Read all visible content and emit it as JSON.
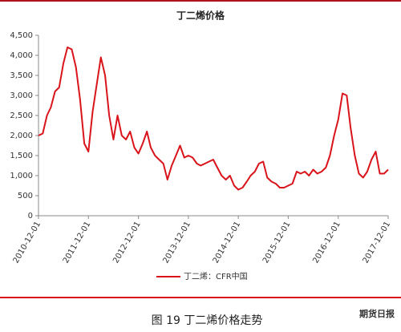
{
  "chart_data": {
    "type": "line",
    "title": "丁二烯价格",
    "caption": "图 19 丁二烯价格走势",
    "watermark": "期货日报",
    "x": [
      "2010-12-01",
      "2011-01-01",
      "2011-02-01",
      "2011-03-01",
      "2011-04-01",
      "2011-05-01",
      "2011-06-01",
      "2011-07-01",
      "2011-08-01",
      "2011-09-01",
      "2011-10-01",
      "2011-11-01",
      "2011-12-01",
      "2012-01-01",
      "2012-02-01",
      "2012-03-01",
      "2012-04-01",
      "2012-05-01",
      "2012-06-01",
      "2012-07-01",
      "2012-08-01",
      "2012-09-01",
      "2012-10-01",
      "2012-11-01",
      "2012-12-01",
      "2013-01-01",
      "2013-02-01",
      "2013-03-01",
      "2013-04-01",
      "2013-05-01",
      "2013-06-01",
      "2013-07-01",
      "2013-08-01",
      "2013-09-01",
      "2013-10-01",
      "2013-11-01",
      "2013-12-01",
      "2014-01-01",
      "2014-02-01",
      "2014-03-01",
      "2014-04-01",
      "2014-05-01",
      "2014-06-01",
      "2014-07-01",
      "2014-08-01",
      "2014-09-01",
      "2014-10-01",
      "2014-11-01",
      "2014-12-01",
      "2015-01-01",
      "2015-02-01",
      "2015-03-01",
      "2015-04-01",
      "2015-05-01",
      "2015-06-01",
      "2015-07-01",
      "2015-08-01",
      "2015-09-01",
      "2015-10-01",
      "2015-11-01",
      "2015-12-01",
      "2016-01-01",
      "2016-02-01",
      "2016-03-01",
      "2016-04-01",
      "2016-05-01",
      "2016-06-01",
      "2016-07-01",
      "2016-08-01",
      "2016-09-01",
      "2016-10-01",
      "2016-11-01",
      "2016-12-01",
      "2017-01-01",
      "2017-02-01",
      "2017-03-01",
      "2017-04-01",
      "2017-05-01",
      "2017-06-01",
      "2017-07-01",
      "2017-08-01",
      "2017-09-01",
      "2017-10-01",
      "2017-11-01",
      "2017-12-01"
    ],
    "series": [
      {
        "name": "丁二烯：CFR中国",
        "color": "#d9141b",
        "values": [
          2000,
          2050,
          2500,
          2700,
          3100,
          3200,
          3800,
          4200,
          4150,
          3700,
          2900,
          1800,
          1600,
          2600,
          3300,
          3950,
          3500,
          2500,
          1900,
          2500,
          2000,
          1900,
          2100,
          1700,
          1550,
          1800,
          2100,
          1700,
          1500,
          1400,
          1300,
          900,
          1250,
          1500,
          1750,
          1450,
          1500,
          1450,
          1300,
          1250,
          1300,
          1350,
          1400,
          1200,
          1000,
          900,
          1000,
          750,
          650,
          700,
          850,
          1000,
          1100,
          1300,
          1350,
          950,
          850,
          800,
          700,
          700,
          750,
          800,
          1100,
          1050,
          1100,
          1000,
          1150,
          1050,
          1100,
          1200,
          1500,
          2000,
          2400,
          3050,
          3000,
          2200,
          1500,
          1050,
          950,
          1100,
          1400,
          1600,
          1050,
          1050,
          1150
        ]
      }
    ],
    "xlim": [
      "2010-12-01",
      "2017-12-01"
    ],
    "xticks": [
      "2010-12-01",
      "2011-12-01",
      "2012-12-01",
      "2013-12-01",
      "2014-12-01",
      "2015-12-01",
      "2016-12-01",
      "2017-12-01"
    ],
    "ylim": [
      0,
      4500
    ],
    "yticks": [
      0,
      500,
      {
        "value": 1000,
        "label": "1,000"
      },
      {
        "value": 1500,
        "label": "1,500"
      },
      {
        "value": 2000,
        "label": "2,000"
      },
      {
        "value": 2500,
        "label": "2,500"
      },
      {
        "value": 3000,
        "label": "3,000"
      },
      {
        "value": 3500,
        "label": "3,500"
      },
      {
        "value": 4000,
        "label": "4,000"
      },
      {
        "value": 4500,
        "label": "4,500"
      }
    ],
    "grid": false
  }
}
